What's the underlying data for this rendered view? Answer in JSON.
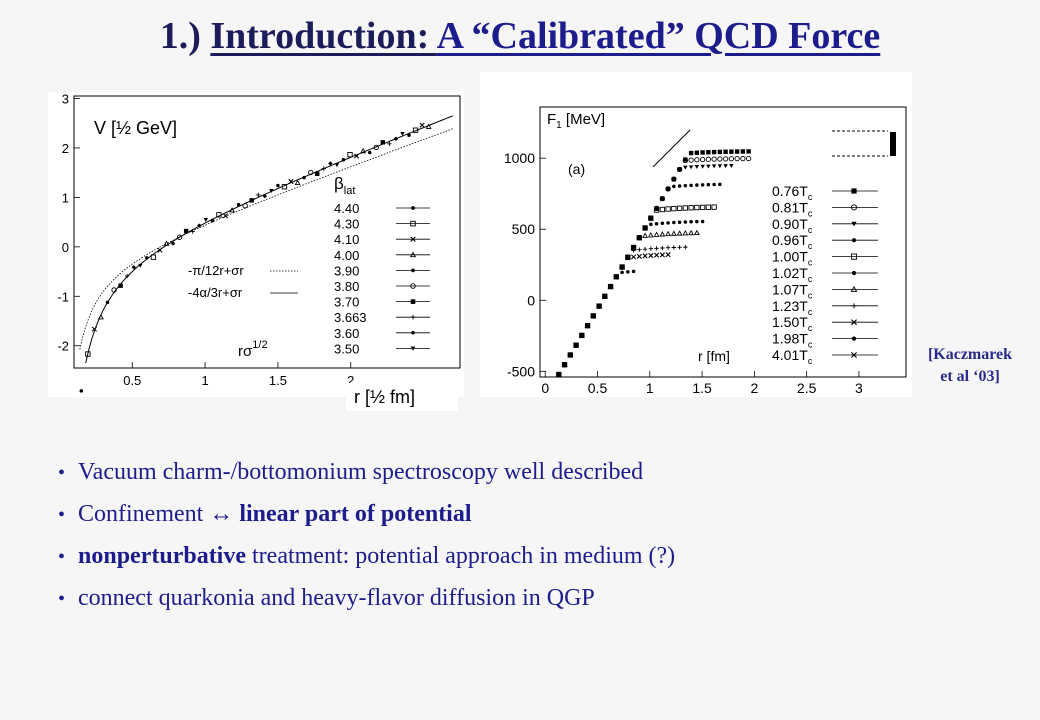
{
  "title": {
    "prefix": "1.) ",
    "part1": "Introduction: ",
    "part2": "A “Calibrated” QCD Force"
  },
  "left_plot": {
    "ylabel": "V [½ GeV]",
    "xlabel": "r [½ fm]",
    "x_ticks": [
      "0.5",
      "1",
      "1.5",
      "2"
    ],
    "y_ticks": [
      "3",
      "2",
      "1",
      "0",
      "-1",
      "-2"
    ],
    "legend_title": "β",
    "legend_title_sub": "lat",
    "legend_entries": [
      "4.40",
      "4.30",
      "4.10",
      "4.00",
      "3.90",
      "3.80",
      "3.70",
      "3.663",
      "3.60",
      "3.50"
    ],
    "curve_legend": [
      "-π/12r+σr",
      "-4α/3r+σr"
    ],
    "x_annotation": "rσ",
    "x_annotation_sup": "1/2"
  },
  "right_plot": {
    "ylabel": "F",
    "ylabel_sub": "1",
    "ylabel_unit": " [MeV]",
    "panel_label": "(a)",
    "xlabel": "r [fm]",
    "x_ticks": [
      "0",
      "0.5",
      "1",
      "1.5",
      "2",
      "2.5",
      "3"
    ],
    "y_ticks": [
      "1000",
      "500",
      "0",
      "-500"
    ],
    "legend_entries": [
      "0.76",
      "0.81",
      "0.90",
      "0.96",
      "1.00",
      "1.02",
      "1.07",
      "1.23",
      "1.50",
      "1.98",
      "4.01"
    ],
    "legend_unit": "T",
    "legend_unit_sub": "c"
  },
  "citation": {
    "line1": "[Kaczmarek",
    "line2": "et al ‘03]"
  },
  "bullets": [
    {
      "pre": "Vacuum charm-/bottomonium spectroscopy well described",
      "bold": "",
      "post": ""
    },
    {
      "pre": "Confinement ↔ ",
      "bold": "linear part of potential",
      "post": ""
    },
    {
      "pre": "",
      "bold": "nonperturbative",
      "post": " treatment: potential approach in medium (?)"
    },
    {
      "pre": "connect quarkonia and heavy-flavor diffusion in QGP",
      "bold": "",
      "post": ""
    }
  ],
  "bullet_glyph": "•"
}
